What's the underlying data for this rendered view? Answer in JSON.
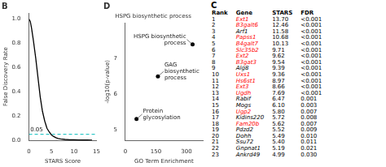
{
  "chart_data": [
    {
      "type": "line",
      "title": "B",
      "x_label": "STARS Score",
      "y_label": "False Discovery Rate",
      "series": [
        {
          "x": [
            0,
            0.3,
            0.6,
            1,
            1.5,
            2,
            2.5,
            3,
            3.5,
            4,
            4.5,
            5,
            5.5,
            6,
            6.5,
            7,
            8,
            9,
            10,
            11,
            12,
            13,
            14
          ],
          "values": [
            1.0,
            0.98,
            0.92,
            0.82,
            0.68,
            0.52,
            0.36,
            0.24,
            0.16,
            0.1,
            0.07,
            0.045,
            0.032,
            0.022,
            0.016,
            0.012,
            0.008,
            0.006,
            0.005,
            0.004,
            0.003,
            0.003,
            0.002
          ],
          "color": "#000000",
          "line_style": "solid"
        },
        {
          "x": [
            0,
            15
          ],
          "values": [
            0.05,
            0.05
          ],
          "color": "#00bbbb",
          "line_style": "dashed"
        }
      ],
      "xlim": [
        0,
        15
      ],
      "xticks": [
        0,
        5,
        10,
        15
      ],
      "ylim": [
        0,
        1.05
      ],
      "yticks": [
        {
          "value": 0,
          "label": "0.0"
        },
        0.2,
        0.4,
        0.6,
        0.8,
        {
          "value": 1,
          "label": "1.0"
        }
      ],
      "grid": false,
      "annotations": [
        {
          "text": "0.05",
          "x": 0.3,
          "y": 0.065
        }
      ]
    },
    {
      "type": "table",
      "title": "C",
      "series": [
        {
          "name": "Rank",
          "values": [
            1,
            2,
            3,
            4,
            5,
            6,
            7,
            8,
            9,
            10,
            11,
            12,
            13,
            14,
            15,
            16,
            17,
            18,
            19,
            20,
            21,
            22,
            23
          ]
        },
        {
          "name": "Gene",
          "values": [
            "Ext1",
            "B3galt6",
            "Arf1",
            "Papss1",
            "B4galt7",
            "Slc35b2",
            "Ext2",
            "B3gat3",
            "Alg8",
            "Uxs1",
            "Hs6st1",
            "Ext3",
            "Ugdh",
            "Rabif",
            "Mogs",
            "Ugp2",
            "Kidins220",
            "Fam20b",
            "Pdzd2",
            "Dohh",
            "Ssu72",
            "Gnpnat1",
            "Ankrd49"
          ],
          "colors": [
            "red",
            "red",
            "black",
            "red",
            "red",
            "red",
            "red",
            "red",
            "black",
            "red",
            "red",
            "red",
            "red",
            "black",
            "black",
            "red",
            "black",
            "red",
            "black",
            "black",
            "black",
            "black",
            "black"
          ]
        },
        {
          "name": "STARS",
          "values": [
            13.7,
            12.46,
            11.58,
            10.68,
            10.13,
            9.71,
            9.62,
            9.54,
            9.39,
            9.36,
            8.97,
            8.66,
            7.69,
            6.47,
            6.1,
            5.8,
            5.72,
            5.62,
            5.52,
            5.49,
            5.4,
            5.19,
            4.99
          ],
          "value_labels": [
            "13.70",
            "12.46",
            "11.58",
            "10.68",
            "10.13",
            "9.71",
            "9.62",
            "9.54",
            "9.39",
            "9.36",
            "8.97",
            "8.66",
            "7.69",
            "6.47",
            "6.10",
            "5.80",
            "5.72",
            "5.62",
            "5.52",
            "5.49",
            "5.40",
            "5.19",
            "4.99"
          ]
        },
        {
          "name": "FDR",
          "values": [
            "<0.001",
            "<0.001",
            "<0.001",
            "<0.001",
            "<0.001",
            "<0.001",
            "<0.001",
            "<0.001",
            "<0.001",
            "<0.001",
            "<0.001",
            "<0.001",
            "<0.001",
            "0.001",
            "0.003",
            "0.007",
            "0.008",
            "0.007",
            "0.009",
            "0.010",
            "0.011",
            "0.021",
            "0.030"
          ]
        }
      ]
    },
    {
      "type": "scatter",
      "title": "D",
      "subtitle": "HSPG biosynthetic process",
      "x_label": "GO Term Enrichment",
      "y_label": "-log10(p-value)",
      "x": [
        330,
        160,
        55
      ],
      "series": [
        {
          "values": [
            7.4,
            6.5,
            5.3
          ],
          "color": "#000000"
        }
      ],
      "xlim": [
        0,
        380
      ],
      "xticks": [
        0,
        150,
        300
      ],
      "ylim": [
        4.7,
        8.0
      ],
      "yticks": [
        5,
        6,
        7
      ],
      "grid": false,
      "annotations": [
        {
          "text": "HSPG biosynthetic\nprocess",
          "x": 330,
          "y": 7.4
        },
        {
          "text": "GAG\nbiosynthetic\nprocess",
          "x": 160,
          "y": 6.5
        },
        {
          "text": "Protein\nglycosylation",
          "x": 55,
          "y": 5.3
        }
      ]
    }
  ]
}
